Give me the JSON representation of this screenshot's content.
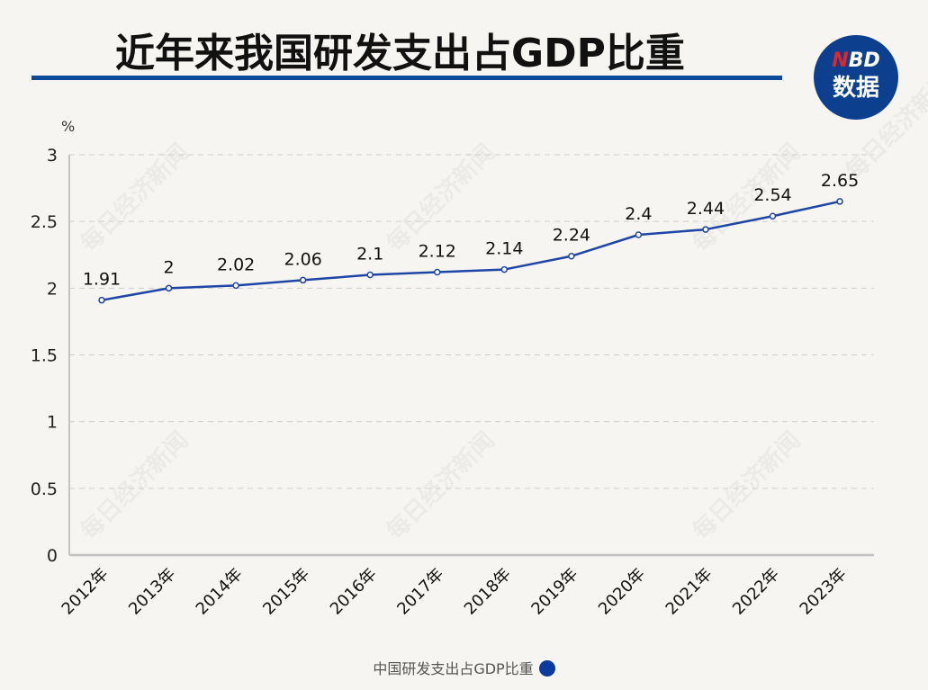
{
  "header": {
    "title": "近年来我国研发支出占GDP比重",
    "logo_line1_accent": "N",
    "logo_line1_rest": "BD",
    "logo_line2": "数据",
    "accent_color": "#0d4a9a"
  },
  "watermark_text": "每日经济新闻",
  "chart_data": {
    "type": "line",
    "title": "近年来我国研发支出占GDP比重",
    "ylabel": "%",
    "xlabel": "",
    "categories": [
      "2012年",
      "2013年",
      "2014年",
      "2015年",
      "2016年",
      "2017年",
      "2018年",
      "2019年",
      "2020年",
      "2021年",
      "2022年",
      "2023年"
    ],
    "series": [
      {
        "name": "中国研发支出占GDP比重",
        "values": [
          1.91,
          2,
          2.02,
          2.06,
          2.1,
          2.12,
          2.14,
          2.24,
          2.4,
          2.44,
          2.54,
          2.65
        ],
        "labels": [
          "1.91",
          "2",
          "2.02",
          "2.06",
          "2.1",
          "2.12",
          "2.14",
          "2.24",
          "2.4",
          "2.44",
          "2.54",
          "2.65"
        ],
        "color": "#1f45a5"
      }
    ],
    "ylim": [
      0,
      3
    ],
    "yticks": [
      0,
      0.5,
      1,
      1.5,
      2,
      2.5,
      3
    ],
    "ytick_labels": [
      "0",
      "0.5",
      "1",
      "1.5",
      "2",
      "2.5",
      "3"
    ],
    "grid": true,
    "legend_position": "bottom-center"
  },
  "legend": {
    "label": "中国研发支出占GDP比重",
    "color": "#0d3a9e"
  }
}
